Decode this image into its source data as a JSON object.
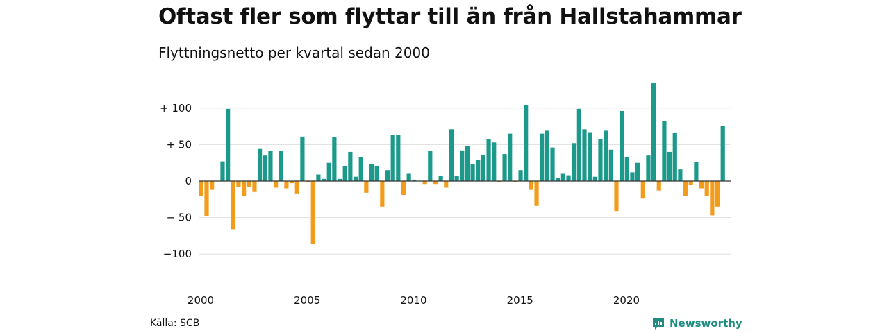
{
  "title": "Oftast fler som flyttar till än från Hallstahammar",
  "subtitle": "Flyttningsnetto per kvartal sedan 2000",
  "source": "Källa: SCB",
  "brand": {
    "name": "Newsworthy",
    "icon": "newsworthy-logo-icon",
    "color": "#1e8c80"
  },
  "chart_data": {
    "type": "bar",
    "title": "Oftast fler som flyttar till än från Hallstahammar",
    "subtitle": "Flyttningsnetto per kvartal sedan 2000",
    "xlabel": "",
    "ylabel": "",
    "ylim": [
      -140,
      140
    ],
    "yticks": [
      100,
      50,
      0,
      -50,
      -100
    ],
    "ytick_labels": [
      "+ 100",
      "+  50",
      "0",
      "− 50",
      "−100"
    ],
    "xticks": [
      {
        "year": 2000,
        "label": "2000"
      },
      {
        "year": 2005,
        "label": "2005"
      },
      {
        "year": 2010,
        "label": "2010"
      },
      {
        "year": 2015,
        "label": "2015"
      },
      {
        "year": 2020,
        "label": "2020"
      }
    ],
    "grid": true,
    "colors": {
      "positive": "#1b998b",
      "negative": "#f39c1c"
    },
    "start": "2000 Q1",
    "categories": [
      "2000 Q1",
      "2000 Q2",
      "2000 Q3",
      "2000 Q4",
      "2001 Q1",
      "2001 Q2",
      "2001 Q3",
      "2001 Q4",
      "2002 Q1",
      "2002 Q2",
      "2002 Q3",
      "2002 Q4",
      "2003 Q1",
      "2003 Q2",
      "2003 Q3",
      "2003 Q4",
      "2004 Q1",
      "2004 Q2",
      "2004 Q3",
      "2004 Q4",
      "2005 Q1",
      "2005 Q2",
      "2005 Q3",
      "2005 Q4",
      "2006 Q1",
      "2006 Q2",
      "2006 Q3",
      "2006 Q4",
      "2007 Q1",
      "2007 Q2",
      "2007 Q3",
      "2007 Q4",
      "2008 Q1",
      "2008 Q2",
      "2008 Q3",
      "2008 Q4",
      "2009 Q1",
      "2009 Q2",
      "2009 Q3",
      "2009 Q4",
      "2010 Q1",
      "2010 Q2",
      "2010 Q3",
      "2010 Q4",
      "2011 Q1",
      "2011 Q2",
      "2011 Q3",
      "2011 Q4",
      "2012 Q1",
      "2012 Q2",
      "2012 Q3",
      "2012 Q4",
      "2013 Q1",
      "2013 Q2",
      "2013 Q3",
      "2013 Q4",
      "2014 Q1",
      "2014 Q2",
      "2014 Q3",
      "2014 Q4",
      "2015 Q1",
      "2015 Q2",
      "2015 Q3",
      "2015 Q4",
      "2016 Q1",
      "2016 Q2",
      "2016 Q3",
      "2016 Q4",
      "2017 Q1",
      "2017 Q2",
      "2017 Q3",
      "2017 Q4",
      "2018 Q1",
      "2018 Q2",
      "2018 Q3",
      "2018 Q4",
      "2019 Q1",
      "2019 Q2",
      "2019 Q3",
      "2019 Q4",
      "2020 Q1",
      "2020 Q2",
      "2020 Q3",
      "2020 Q4",
      "2021 Q1",
      "2021 Q2",
      "2021 Q3",
      "2021 Q4",
      "2022 Q1",
      "2022 Q2",
      "2022 Q3",
      "2022 Q4",
      "2023 Q1",
      "2023 Q2",
      "2023 Q3",
      "2023 Q4",
      "2024 Q1",
      "2024 Q2",
      "2024 Q3",
      "2024 Q4"
    ],
    "values": [
      -20,
      -48,
      -12,
      0,
      27,
      99,
      -66,
      -8,
      -20,
      -8,
      -15,
      44,
      35,
      41,
      -9,
      41,
      -10,
      -3,
      -17,
      61,
      -2,
      -86,
      9,
      3,
      25,
      60,
      3,
      21,
      40,
      6,
      33,
      -16,
      23,
      21,
      -35,
      15,
      63,
      63,
      -19,
      10,
      2,
      0,
      -4,
      41,
      -4,
      7,
      -9,
      71,
      7,
      42,
      48,
      23,
      29,
      36,
      57,
      53,
      -2,
      37,
      65,
      -1,
      15,
      104,
      -12,
      -34,
      65,
      69,
      46,
      4,
      10,
      8,
      52,
      99,
      71,
      67,
      6,
      58,
      69,
      43,
      -41,
      96,
      33,
      12,
      25,
      -24,
      35,
      134,
      -13,
      82,
      40,
      66,
      16,
      -20,
      -5,
      26,
      -10,
      -20,
      -47,
      -35,
      76,
      0
    ]
  }
}
